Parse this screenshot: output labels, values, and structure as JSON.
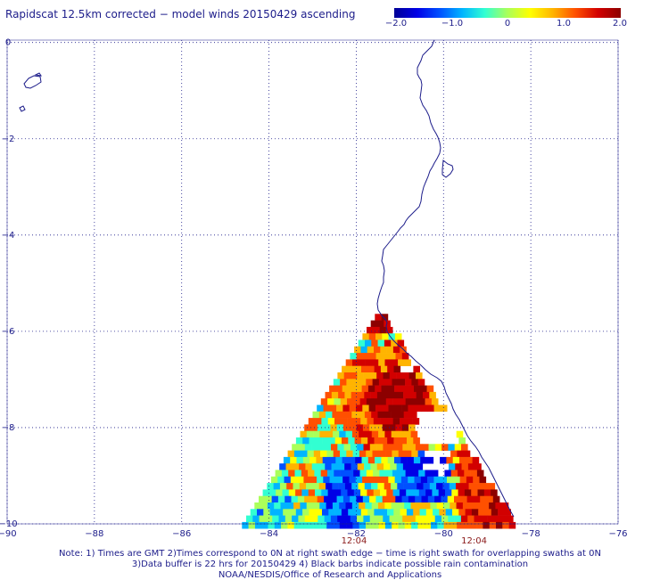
{
  "title": "Rapidscat 12.5km corrected − model winds 20150429 ascending",
  "colorbar": {
    "colors": [
      "#000096",
      "#0000e6",
      "#0050ff",
      "#00b4ff",
      "#32ffd2",
      "#aaff5a",
      "#ffff00",
      "#ffb400",
      "#ff5000",
      "#d20000",
      "#8c0000"
    ],
    "tick_labels": [
      "−2.0",
      "−1.0",
      "0",
      "1.0",
      "2.0"
    ],
    "tick_values": [
      -2,
      -1,
      0,
      1,
      2
    ],
    "range": [
      -2,
      2
    ]
  },
  "axes": {
    "x_ticks": [
      -90,
      -88,
      -86,
      -84,
      -82,
      -80,
      -78,
      -76
    ],
    "x_labels": [
      "−90",
      "−88",
      "−86",
      "−84",
      "−82",
      "−80",
      "−78",
      "−76"
    ],
    "y_ticks": [
      0,
      -2,
      -4,
      -6,
      -8,
      -10
    ],
    "y_labels": [
      "0",
      "−2",
      "−4",
      "−6",
      "−8",
      "−10"
    ],
    "lon_range": [
      -90,
      -76
    ],
    "lat_range": [
      -10,
      0.05
    ]
  },
  "times": [
    {
      "label": "12:04",
      "lon": -82.05
    },
    {
      "label": "12:04",
      "lon": -79.3
    }
  ],
  "notes": [
    "Note: 1) Times are GMT 2)Times correspond to 0N at right swath edge − time is right swath for overlapping swaths at 0N",
    "3)Data buffer is 22 hrs for 20150429 4) Black barbs indicate possible rain contamination",
    "NOAA/NESDIS/Office of Research and Applications"
  ]
}
